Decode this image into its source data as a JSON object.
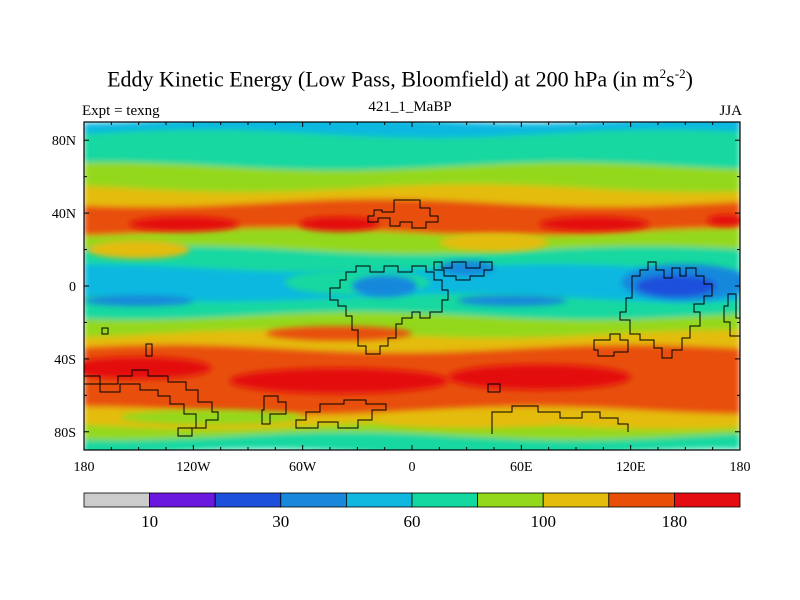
{
  "chart_data": {
    "type": "heatmap",
    "title_main": "Eddy Kinetic Energy (Low Pass, Bloomfield) at 200 hPa (in m",
    "title_sup1": "2",
    "title_mid": "s",
    "title_sup2": "-2",
    "title_end": ")",
    "subtitle_left": "Expt = texng",
    "subtitle_center": "421_1_MaBP",
    "subtitle_right": "JJA",
    "x_range": [
      -180,
      180
    ],
    "y_range": [
      -90,
      90
    ],
    "x_ticks": [
      {
        "value": -180,
        "label": "180"
      },
      {
        "value": -120,
        "label": "120W"
      },
      {
        "value": -60,
        "label": "60W"
      },
      {
        "value": 0,
        "label": "0"
      },
      {
        "value": 60,
        "label": "60E"
      },
      {
        "value": 120,
        "label": "120E"
      },
      {
        "value": 180,
        "label": "180"
      }
    ],
    "y_ticks": [
      {
        "value": 80,
        "label": "80N"
      },
      {
        "value": 40,
        "label": "40N"
      },
      {
        "value": 0,
        "label": "0"
      },
      {
        "value": -40,
        "label": "40S"
      },
      {
        "value": -80,
        "label": "80S"
      }
    ],
    "colorbar": {
      "colors": [
        "#cccccc",
        "#6a18e0",
        "#1c50dc",
        "#1888dc",
        "#10b8e0",
        "#12d8a0",
        "#94d81c",
        "#e4bc0c",
        "#e85008",
        "#e40c10"
      ],
      "labels": [
        {
          "boundary": 1,
          "text": "10"
        },
        {
          "boundary": 3,
          "text": "30"
        },
        {
          "boundary": 5,
          "text": "60"
        },
        {
          "boundary": 7,
          "text": "100"
        },
        {
          "boundary": 9,
          "text": "180"
        }
      ]
    },
    "bands": [
      {
        "lat_top": 90,
        "lat_bottom": 82,
        "level": 4
      },
      {
        "lat_top": 82,
        "lat_bottom": 64,
        "level": 5
      },
      {
        "lat_top": 64,
        "lat_bottom": 52,
        "level": 6
      },
      {
        "lat_top": 52,
        "lat_bottom": 44,
        "level": 7
      },
      {
        "lat_top": 44,
        "lat_bottom": 28,
        "level": 8
      },
      {
        "lat_top": 28,
        "lat_bottom": 18,
        "level": 6
      },
      {
        "lat_top": 18,
        "lat_bottom": 8,
        "level": 5
      },
      {
        "lat_top": 8,
        "lat_bottom": -8,
        "level": 4
      },
      {
        "lat_top": -8,
        "lat_bottom": -18,
        "level": 5
      },
      {
        "lat_top": -18,
        "lat_bottom": -28,
        "level": 6
      },
      {
        "lat_top": -28,
        "lat_bottom": -36,
        "level": 7
      },
      {
        "lat_top": -36,
        "lat_bottom": -70,
        "level": 8
      },
      {
        "lat_top": -70,
        "lat_bottom": -78,
        "level": 7
      },
      {
        "lat_top": -78,
        "lat_bottom": -84,
        "level": 6
      },
      {
        "lat_top": -84,
        "lat_bottom": -90,
        "level": 5
      }
    ],
    "blobs": [
      {
        "lon": -125,
        "lat": 34,
        "rlon": 30,
        "rlat": 4,
        "level": 9
      },
      {
        "lon": -40,
        "lat": 34,
        "rlon": 22,
        "rlat": 4,
        "level": 9
      },
      {
        "lon": 100,
        "lat": 34,
        "rlon": 30,
        "rlat": 4,
        "level": 9
      },
      {
        "lon": 172,
        "lat": 36,
        "rlon": 10,
        "rlat": 3,
        "level": 9
      },
      {
        "lon": 45,
        "lat": 24,
        "rlon": 30,
        "rlat": 5,
        "level": 7
      },
      {
        "lon": -150,
        "lat": 20,
        "rlon": 28,
        "rlat": 5,
        "level": 7
      },
      {
        "lon": -30,
        "lat": 2,
        "rlon": 40,
        "rlat": 7,
        "level": 5
      },
      {
        "lon": 150,
        "lat": 2,
        "rlon": 35,
        "rlat": 10,
        "level": 3
      },
      {
        "lon": 145,
        "lat": 0,
        "rlon": 22,
        "rlat": 6,
        "level": 2
      },
      {
        "lon": -15,
        "lat": 0,
        "rlon": 18,
        "rlat": 6,
        "level": 3
      },
      {
        "lon": 30,
        "lat": 10,
        "rlon": 15,
        "rlat": 4,
        "level": 3
      },
      {
        "lon": -150,
        "lat": -8,
        "rlon": 30,
        "rlat": 3,
        "level": 3
      },
      {
        "lon": 55,
        "lat": -8,
        "rlon": 30,
        "rlat": 3,
        "level": 3
      },
      {
        "lon": -40,
        "lat": -26,
        "rlon": 40,
        "rlat": 4,
        "level": 8
      },
      {
        "lon": -150,
        "lat": -45,
        "rlon": 40,
        "rlat": 6,
        "level": 9
      },
      {
        "lon": -40,
        "lat": -52,
        "rlon": 60,
        "rlat": 7,
        "level": 9
      },
      {
        "lon": 70,
        "lat": -50,
        "rlon": 50,
        "rlat": 7,
        "level": 9
      },
      {
        "lon": -110,
        "lat": -72,
        "rlon": 50,
        "rlat": 4,
        "level": 6
      },
      {
        "lon": 30,
        "lat": -74,
        "rlon": 50,
        "rlat": 4,
        "level": 7
      }
    ]
  }
}
